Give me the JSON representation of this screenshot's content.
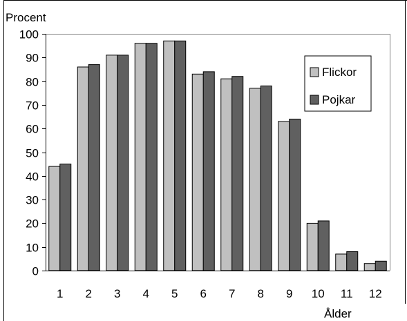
{
  "chart_data": {
    "type": "bar",
    "ylabel": "Procent",
    "xlabel": "Ålder",
    "categories": [
      "1",
      "2",
      "3",
      "4",
      "5",
      "6",
      "7",
      "8",
      "9",
      "10",
      "11",
      "12"
    ],
    "ylim": [
      0,
      100
    ],
    "yticks": [
      0,
      10,
      20,
      30,
      40,
      50,
      60,
      70,
      80,
      90,
      100
    ],
    "grid": false,
    "legend_position": "right",
    "series": [
      {
        "name": "Flickor",
        "color": "#c0c0c0",
        "values": [
          44,
          86,
          91,
          96,
          97,
          83,
          81,
          77,
          63,
          20,
          7,
          3
        ]
      },
      {
        "name": "Pojkar",
        "color": "#606060",
        "values": [
          45,
          87,
          91,
          96,
          97,
          84,
          82,
          78,
          64,
          21,
          8,
          4
        ]
      }
    ]
  }
}
